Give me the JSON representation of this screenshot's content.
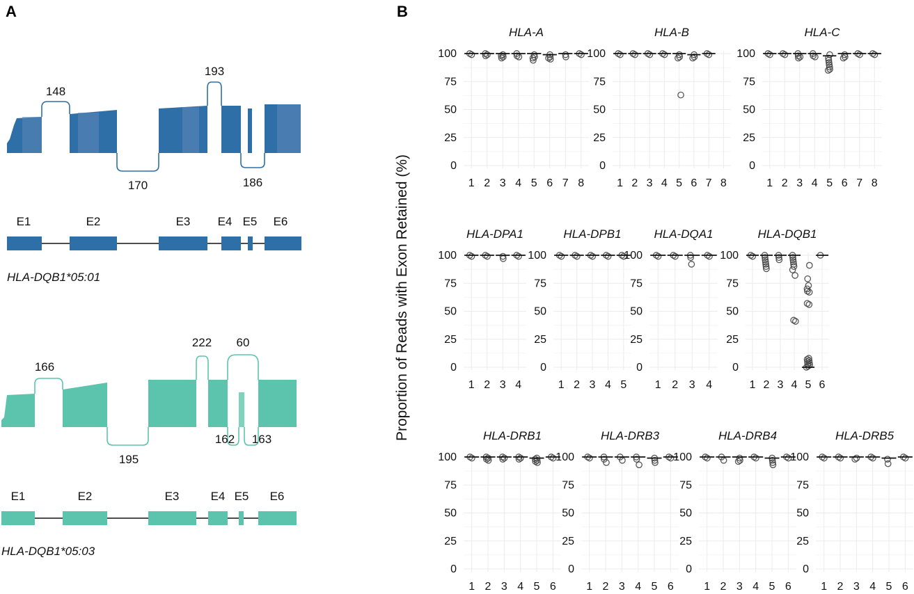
{
  "panel_a": {
    "letter": "A",
    "alleles": [
      {
        "name": "HLA-DQB1*05:01",
        "color": "#2f6fa7",
        "color_light": "#5b86b6",
        "junctions": [
          "148",
          "170",
          "193",
          "186"
        ],
        "exons": [
          "E1",
          "E2",
          "E3",
          "E4",
          "E5",
          "E6"
        ]
      },
      {
        "name": "HLA-DQB1*05:03",
        "color": "#5cc4ac",
        "color_light": "#7dd3bd",
        "junctions": [
          "166",
          "195",
          "222",
          "60",
          "162",
          "163"
        ],
        "exons": [
          "E1",
          "E2",
          "E3",
          "E4",
          "E5",
          "E6"
        ]
      }
    ]
  },
  "chart_data": {
    "letter": "B",
    "type": "scatter",
    "ylabel": "Proportion of Reads with Exon Retained (%)",
    "ylim": [
      0,
      100
    ],
    "yticks": [
      "100",
      "75",
      "50",
      "25",
      "0"
    ],
    "point_color": "#444444",
    "facets": [
      {
        "gene": "HLA-A",
        "exons": [
          "1",
          "2",
          "3",
          "4",
          "5",
          "6",
          "7",
          "8"
        ],
        "medians": [
          100,
          100,
          100,
          100,
          100,
          99,
          100,
          100
        ],
        "points": [
          [
            1,
            100
          ],
          [
            1,
            99
          ],
          [
            2,
            100
          ],
          [
            2,
            98
          ],
          [
            2,
            99
          ],
          [
            3,
            99
          ],
          [
            3,
            97
          ],
          [
            3,
            98
          ],
          [
            3,
            96
          ],
          [
            4,
            100
          ],
          [
            4,
            98
          ],
          [
            4,
            97
          ],
          [
            5,
            99
          ],
          [
            5,
            97
          ],
          [
            5,
            96
          ],
          [
            5,
            94
          ],
          [
            6,
            99
          ],
          [
            6,
            97
          ],
          [
            6,
            96
          ],
          [
            6,
            95
          ],
          [
            7,
            99
          ],
          [
            7,
            97
          ],
          [
            8,
            100
          ],
          [
            8,
            99
          ]
        ]
      },
      {
        "gene": "HLA-B",
        "exons": [
          "1",
          "2",
          "3",
          "4",
          "5",
          "6",
          "7",
          "8"
        ],
        "medians": [
          100,
          100,
          100,
          100,
          100,
          99,
          100,
          null
        ],
        "points": [
          [
            1,
            100
          ],
          [
            1,
            99
          ],
          [
            2,
            100
          ],
          [
            2,
            99
          ],
          [
            3,
            100
          ],
          [
            3,
            99
          ],
          [
            4,
            100
          ],
          [
            4,
            99
          ],
          [
            5,
            99
          ],
          [
            5,
            97
          ],
          [
            5,
            96
          ],
          [
            5,
            63
          ],
          [
            6,
            99
          ],
          [
            6,
            97
          ],
          [
            6,
            96
          ],
          [
            7,
            100
          ],
          [
            7,
            99
          ]
        ]
      },
      {
        "gene": "HLA-C",
        "exons": [
          "1",
          "2",
          "3",
          "4",
          "5",
          "6",
          "7",
          "8"
        ],
        "medians": [
          100,
          100,
          100,
          100,
          98,
          100,
          100,
          100
        ],
        "points": [
          [
            1,
            100
          ],
          [
            1,
            99
          ],
          [
            2,
            100
          ],
          [
            2,
            99
          ],
          [
            3,
            100
          ],
          [
            3,
            98
          ],
          [
            3,
            97
          ],
          [
            3,
            96
          ],
          [
            4,
            100
          ],
          [
            4,
            98
          ],
          [
            4,
            97
          ],
          [
            5,
            99
          ],
          [
            5,
            96
          ],
          [
            5,
            94
          ],
          [
            5,
            92
          ],
          [
            5,
            90
          ],
          [
            5,
            88
          ],
          [
            5,
            86
          ],
          [
            5,
            85
          ],
          [
            6,
            99
          ],
          [
            6,
            97
          ],
          [
            6,
            96
          ],
          [
            7,
            100
          ],
          [
            7,
            99
          ],
          [
            8,
            100
          ],
          [
            8,
            99
          ]
        ]
      },
      {
        "gene": "HLA-DPA1",
        "exons": [
          "1",
          "2",
          "3",
          "4"
        ],
        "medians": [
          100,
          100,
          100,
          100
        ],
        "points": [
          [
            1,
            100
          ],
          [
            1,
            99
          ],
          [
            2,
            100
          ],
          [
            2,
            99
          ],
          [
            3,
            99
          ],
          [
            3,
            97
          ],
          [
            4,
            100
          ],
          [
            4,
            99
          ]
        ]
      },
      {
        "gene": "HLA-DPB1",
        "exons": [
          "1",
          "2",
          "3",
          "4",
          "5"
        ],
        "medians": [
          100,
          100,
          100,
          100,
          100
        ],
        "points": [
          [
            1,
            100
          ],
          [
            1,
            99
          ],
          [
            2,
            100
          ],
          [
            2,
            99
          ],
          [
            3,
            100
          ],
          [
            3,
            99
          ],
          [
            4,
            100
          ],
          [
            4,
            99
          ],
          [
            5,
            100
          ],
          [
            5,
            99
          ]
        ]
      },
      {
        "gene": "HLA-DQA1",
        "exons": [
          "1",
          "2",
          "3",
          "4"
        ],
        "medians": [
          100,
          100,
          100,
          100
        ],
        "points": [
          [
            1,
            100
          ],
          [
            1,
            99
          ],
          [
            2,
            100
          ],
          [
            2,
            99
          ],
          [
            3,
            100
          ],
          [
            3,
            98
          ],
          [
            3,
            92
          ],
          [
            4,
            100
          ],
          [
            4,
            99
          ]
        ]
      },
      {
        "gene": "HLA-DQB1",
        "exons": [
          "1",
          "2",
          "3",
          "4",
          "5",
          "6"
        ],
        "medians": [
          100,
          100,
          100,
          100,
          0,
          100
        ],
        "points": [
          [
            1,
            100
          ],
          [
            1,
            99
          ],
          [
            2,
            100
          ],
          [
            2,
            98
          ],
          [
            2,
            96
          ],
          [
            2,
            94
          ],
          [
            2,
            92
          ],
          [
            2,
            90
          ],
          [
            2,
            88
          ],
          [
            3,
            100
          ],
          [
            3,
            98
          ],
          [
            3,
            96
          ],
          [
            4,
            100
          ],
          [
            4,
            98
          ],
          [
            4,
            96
          ],
          [
            4,
            94
          ],
          [
            4,
            92
          ],
          [
            4,
            90
          ],
          [
            4,
            87
          ],
          [
            4,
            82
          ],
          [
            4,
            42
          ],
          [
            4,
            41
          ],
          [
            5,
            91
          ],
          [
            5,
            79
          ],
          [
            5,
            73
          ],
          [
            5,
            70
          ],
          [
            5,
            68
          ],
          [
            5,
            67
          ],
          [
            5,
            57
          ],
          [
            5,
            56
          ],
          [
            5,
            8
          ],
          [
            5,
            7
          ],
          [
            5,
            6
          ],
          [
            5,
            5
          ],
          [
            5,
            4
          ],
          [
            5,
            3
          ],
          [
            5,
            2
          ],
          [
            5,
            1
          ],
          [
            5,
            0
          ],
          [
            6,
            100
          ]
        ]
      },
      {
        "gene": "HLA-DRB1",
        "exons": [
          "1",
          "2",
          "3",
          "4",
          "5",
          "6"
        ],
        "medians": [
          100,
          100,
          100,
          100,
          99,
          100
        ],
        "points": [
          [
            1,
            100
          ],
          [
            1,
            99
          ],
          [
            2,
            100
          ],
          [
            2,
            99
          ],
          [
            2,
            98
          ],
          [
            2,
            97
          ],
          [
            3,
            100
          ],
          [
            3,
            99
          ],
          [
            3,
            98
          ],
          [
            4,
            100
          ],
          [
            4,
            99
          ],
          [
            4,
            98
          ],
          [
            5,
            99
          ],
          [
            5,
            98
          ],
          [
            5,
            97
          ],
          [
            5,
            96
          ],
          [
            5,
            95
          ],
          [
            6,
            100
          ],
          [
            6,
            99
          ]
        ]
      },
      {
        "gene": "HLA-DRB3",
        "exons": [
          "1",
          "2",
          "3",
          "4",
          "5",
          "6"
        ],
        "medians": [
          100,
          100,
          100,
          100,
          99,
          100
        ],
        "points": [
          [
            1,
            100
          ],
          [
            1,
            99
          ],
          [
            2,
            100
          ],
          [
            2,
            98
          ],
          [
            2,
            95
          ],
          [
            3,
            100
          ],
          [
            3,
            97
          ],
          [
            4,
            100
          ],
          [
            4,
            98
          ],
          [
            4,
            93
          ],
          [
            5,
            99
          ],
          [
            5,
            97
          ],
          [
            5,
            95
          ],
          [
            6,
            100
          ],
          [
            6,
            99
          ]
        ]
      },
      {
        "gene": "HLA-DRB4",
        "exons": [
          "1",
          "2",
          "3",
          "4",
          "5",
          "6"
        ],
        "medians": [
          100,
          100,
          100,
          100,
          99,
          100
        ],
        "points": [
          [
            1,
            100
          ],
          [
            1,
            99
          ],
          [
            2,
            100
          ],
          [
            2,
            97
          ],
          [
            3,
            99
          ],
          [
            3,
            97
          ],
          [
            3,
            96
          ],
          [
            4,
            100
          ],
          [
            4,
            99
          ],
          [
            5,
            99
          ],
          [
            5,
            97
          ],
          [
            5,
            95
          ],
          [
            5,
            93
          ],
          [
            6,
            100
          ],
          [
            6,
            99
          ]
        ]
      },
      {
        "gene": "HLA-DRB5",
        "exons": [
          "1",
          "2",
          "3",
          "4",
          "5",
          "6"
        ],
        "medians": [
          100,
          100,
          100,
          100,
          99,
          100
        ],
        "points": [
          [
            1,
            100
          ],
          [
            1,
            99
          ],
          [
            2,
            100
          ],
          [
            2,
            99
          ],
          [
            3,
            99
          ],
          [
            3,
            98
          ],
          [
            4,
            100
          ],
          [
            4,
            99
          ],
          [
            5,
            98
          ],
          [
            5,
            94
          ],
          [
            6,
            100
          ],
          [
            6,
            99
          ]
        ]
      }
    ]
  }
}
